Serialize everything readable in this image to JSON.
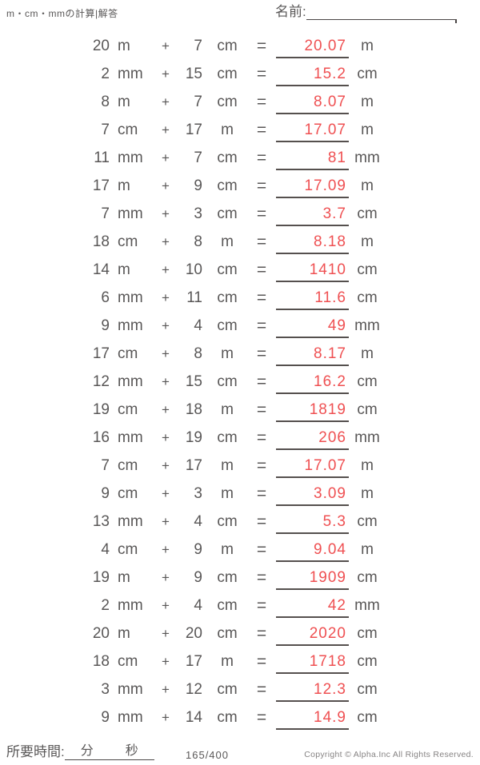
{
  "header": {
    "title": "m・cm・mmの計算|解答",
    "name_label": "名前:"
  },
  "symbols": {
    "plus": "+",
    "equals": "="
  },
  "problems": [
    {
      "a": "20",
      "ua": "m",
      "b": "7",
      "ub": "cm",
      "ans": "20.07",
      "uans": "m"
    },
    {
      "a": "2",
      "ua": "mm",
      "b": "15",
      "ub": "cm",
      "ans": "15.2",
      "uans": "cm"
    },
    {
      "a": "8",
      "ua": "m",
      "b": "7",
      "ub": "cm",
      "ans": "8.07",
      "uans": "m"
    },
    {
      "a": "7",
      "ua": "cm",
      "b": "17",
      "ub": "m",
      "ans": "17.07",
      "uans": "m"
    },
    {
      "a": "11",
      "ua": "mm",
      "b": "7",
      "ub": "cm",
      "ans": "81",
      "uans": "mm"
    },
    {
      "a": "17",
      "ua": "m",
      "b": "9",
      "ub": "cm",
      "ans": "17.09",
      "uans": "m"
    },
    {
      "a": "7",
      "ua": "mm",
      "b": "3",
      "ub": "cm",
      "ans": "3.7",
      "uans": "cm"
    },
    {
      "a": "18",
      "ua": "cm",
      "b": "8",
      "ub": "m",
      "ans": "8.18",
      "uans": "m"
    },
    {
      "a": "14",
      "ua": "m",
      "b": "10",
      "ub": "cm",
      "ans": "1410",
      "uans": "cm"
    },
    {
      "a": "6",
      "ua": "mm",
      "b": "11",
      "ub": "cm",
      "ans": "11.6",
      "uans": "cm"
    },
    {
      "a": "9",
      "ua": "mm",
      "b": "4",
      "ub": "cm",
      "ans": "49",
      "uans": "mm"
    },
    {
      "a": "17",
      "ua": "cm",
      "b": "8",
      "ub": "m",
      "ans": "8.17",
      "uans": "m"
    },
    {
      "a": "12",
      "ua": "mm",
      "b": "15",
      "ub": "cm",
      "ans": "16.2",
      "uans": "cm"
    },
    {
      "a": "19",
      "ua": "cm",
      "b": "18",
      "ub": "m",
      "ans": "1819",
      "uans": "cm"
    },
    {
      "a": "16",
      "ua": "mm",
      "b": "19",
      "ub": "cm",
      "ans": "206",
      "uans": "mm"
    },
    {
      "a": "7",
      "ua": "cm",
      "b": "17",
      "ub": "m",
      "ans": "17.07",
      "uans": "m"
    },
    {
      "a": "9",
      "ua": "cm",
      "b": "3",
      "ub": "m",
      "ans": "3.09",
      "uans": "m"
    },
    {
      "a": "13",
      "ua": "mm",
      "b": "4",
      "ub": "cm",
      "ans": "5.3",
      "uans": "cm"
    },
    {
      "a": "4",
      "ua": "cm",
      "b": "9",
      "ub": "m",
      "ans": "9.04",
      "uans": "m"
    },
    {
      "a": "19",
      "ua": "m",
      "b": "9",
      "ub": "cm",
      "ans": "1909",
      "uans": "cm"
    },
    {
      "a": "2",
      "ua": "mm",
      "b": "4",
      "ub": "cm",
      "ans": "42",
      "uans": "mm"
    },
    {
      "a": "20",
      "ua": "m",
      "b": "20",
      "ub": "cm",
      "ans": "2020",
      "uans": "cm"
    },
    {
      "a": "18",
      "ua": "cm",
      "b": "17",
      "ub": "m",
      "ans": "1718",
      "uans": "cm"
    },
    {
      "a": "3",
      "ua": "mm",
      "b": "12",
      "ub": "cm",
      "ans": "12.3",
      "uans": "cm"
    },
    {
      "a": "9",
      "ua": "mm",
      "b": "14",
      "ub": "cm",
      "ans": "14.9",
      "uans": "cm"
    }
  ],
  "footer": {
    "time_label": "所要時間:",
    "minutes_label": "分",
    "seconds_label": "秒",
    "page": "165/400",
    "copyright": "Copyright © Alpha.Inc All Rights Reserved."
  },
  "colors": {
    "answer_red": "#ef5052",
    "text_gray": "#595757"
  }
}
